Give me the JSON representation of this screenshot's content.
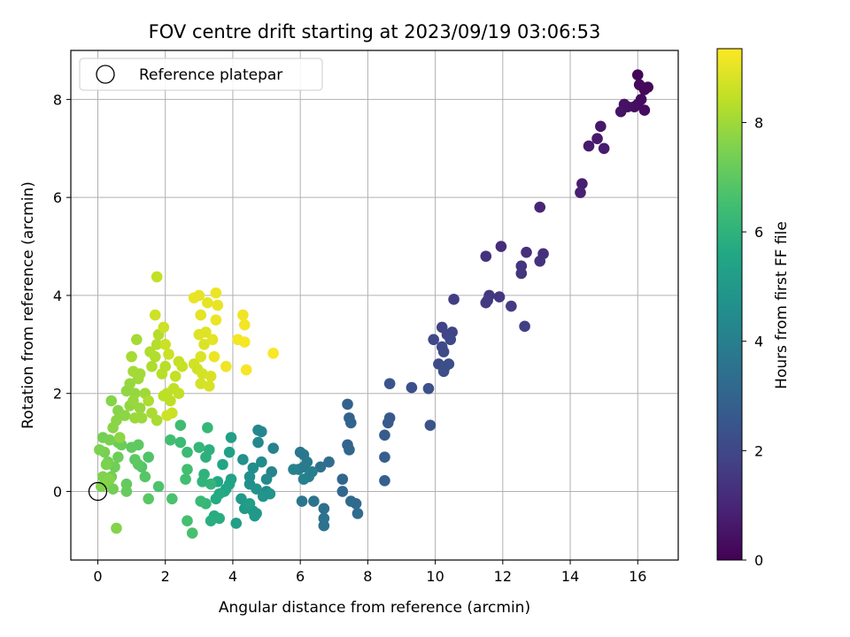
{
  "chart_data": {
    "type": "scatter",
    "title": "FOV centre drift starting at 2023/09/19 03:06:53",
    "xlabel": "Angular distance from reference (arcmin)",
    "ylabel": "Rotation from reference (arcmin)",
    "xlim": [
      -0.8,
      17.2
    ],
    "ylim": [
      -1.4,
      9.0
    ],
    "xticks": [
      0,
      2,
      4,
      6,
      8,
      10,
      12,
      14,
      16
    ],
    "yticks": [
      0,
      2,
      4,
      6,
      8
    ],
    "grid": true,
    "legend": {
      "placement": "top-left",
      "entries": [
        "Reference platepar"
      ]
    },
    "colorbar": {
      "label": "Hours from first FF file",
      "range": [
        0,
        9.35
      ],
      "ticks": [
        0,
        2,
        4,
        6,
        8
      ],
      "colormap": "viridis"
    },
    "reference_point": {
      "x": 0,
      "y": 0
    },
    "points": [
      {
        "x": 16.0,
        "y": 8.5,
        "c": 0.1
      },
      {
        "x": 16.3,
        "y": 8.25,
        "c": 0.15
      },
      {
        "x": 16.2,
        "y": 8.2,
        "c": 0.2
      },
      {
        "x": 16.05,
        "y": 8.3,
        "c": 0.2
      },
      {
        "x": 16.1,
        "y": 8.0,
        "c": 0.25
      },
      {
        "x": 16.0,
        "y": 7.9,
        "c": 0.3
      },
      {
        "x": 15.9,
        "y": 7.85,
        "c": 0.35
      },
      {
        "x": 15.7,
        "y": 7.85,
        "c": 0.4
      },
      {
        "x": 15.6,
        "y": 7.9,
        "c": 0.45
      },
      {
        "x": 15.5,
        "y": 7.75,
        "c": 0.5
      },
      {
        "x": 16.2,
        "y": 7.78,
        "c": 0.3
      },
      {
        "x": 14.9,
        "y": 7.45,
        "c": 0.6
      },
      {
        "x": 14.8,
        "y": 7.2,
        "c": 0.65
      },
      {
        "x": 14.55,
        "y": 7.05,
        "c": 0.7
      },
      {
        "x": 15.0,
        "y": 7.0,
        "c": 0.75
      },
      {
        "x": 14.35,
        "y": 6.28,
        "c": 0.8
      },
      {
        "x": 14.3,
        "y": 6.1,
        "c": 0.85
      },
      {
        "x": 13.1,
        "y": 5.8,
        "c": 1.0
      },
      {
        "x": 11.95,
        "y": 5.0,
        "c": 1.2
      },
      {
        "x": 12.7,
        "y": 4.88,
        "c": 1.25
      },
      {
        "x": 13.2,
        "y": 4.85,
        "c": 1.3
      },
      {
        "x": 11.5,
        "y": 4.8,
        "c": 1.35
      },
      {
        "x": 13.1,
        "y": 4.7,
        "c": 1.35
      },
      {
        "x": 12.55,
        "y": 4.6,
        "c": 1.4
      },
      {
        "x": 12.55,
        "y": 4.45,
        "c": 1.45
      },
      {
        "x": 11.6,
        "y": 4.0,
        "c": 1.5
      },
      {
        "x": 11.9,
        "y": 3.97,
        "c": 1.5
      },
      {
        "x": 11.55,
        "y": 3.9,
        "c": 1.55
      },
      {
        "x": 11.5,
        "y": 3.85,
        "c": 1.6
      },
      {
        "x": 12.25,
        "y": 3.78,
        "c": 1.65
      },
      {
        "x": 10.55,
        "y": 3.92,
        "c": 1.7
      },
      {
        "x": 12.65,
        "y": 3.37,
        "c": 1.75
      },
      {
        "x": 10.2,
        "y": 3.35,
        "c": 1.85
      },
      {
        "x": 10.5,
        "y": 3.25,
        "c": 1.9
      },
      {
        "x": 10.35,
        "y": 3.2,
        "c": 1.95
      },
      {
        "x": 10.45,
        "y": 3.1,
        "c": 2.0
      },
      {
        "x": 9.95,
        "y": 3.1,
        "c": 2.05
      },
      {
        "x": 10.2,
        "y": 2.95,
        "c": 2.1
      },
      {
        "x": 10.25,
        "y": 2.85,
        "c": 2.1
      },
      {
        "x": 10.1,
        "y": 2.6,
        "c": 2.15
      },
      {
        "x": 10.3,
        "y": 2.55,
        "c": 2.2
      },
      {
        "x": 10.25,
        "y": 2.45,
        "c": 2.2
      },
      {
        "x": 10.4,
        "y": 2.6,
        "c": 2.25
      },
      {
        "x": 9.3,
        "y": 2.12,
        "c": 2.3
      },
      {
        "x": 9.8,
        "y": 2.1,
        "c": 2.35
      },
      {
        "x": 9.85,
        "y": 1.35,
        "c": 2.4
      },
      {
        "x": 8.65,
        "y": 2.2,
        "c": 2.5
      },
      {
        "x": 8.65,
        "y": 1.5,
        "c": 2.6
      },
      {
        "x": 8.6,
        "y": 1.4,
        "c": 2.65
      },
      {
        "x": 8.5,
        "y": 1.15,
        "c": 2.7
      },
      {
        "x": 8.5,
        "y": 0.7,
        "c": 2.75
      },
      {
        "x": 8.5,
        "y": 0.22,
        "c": 2.8
      },
      {
        "x": 7.4,
        "y": 1.78,
        "c": 2.9
      },
      {
        "x": 7.45,
        "y": 1.5,
        "c": 2.95
      },
      {
        "x": 7.5,
        "y": 1.4,
        "c": 3.0
      },
      {
        "x": 7.4,
        "y": 0.95,
        "c": 3.0
      },
      {
        "x": 7.45,
        "y": 0.85,
        "c": 3.05
      },
      {
        "x": 7.25,
        "y": 0.25,
        "c": 3.1
      },
      {
        "x": 7.25,
        "y": 0.0,
        "c": 3.15
      },
      {
        "x": 7.5,
        "y": -0.2,
        "c": 3.2
      },
      {
        "x": 7.65,
        "y": -0.25,
        "c": 3.25
      },
      {
        "x": 7.7,
        "y": -0.45,
        "c": 3.3
      },
      {
        "x": 6.85,
        "y": 0.6,
        "c": 3.35
      },
      {
        "x": 6.6,
        "y": 0.5,
        "c": 3.4
      },
      {
        "x": 6.7,
        "y": -0.35,
        "c": 3.45
      },
      {
        "x": 6.7,
        "y": -0.55,
        "c": 3.5
      },
      {
        "x": 6.7,
        "y": -0.7,
        "c": 3.55
      },
      {
        "x": 6.4,
        "y": -0.2,
        "c": 3.6
      },
      {
        "x": 6.05,
        "y": -0.2,
        "c": 3.65
      },
      {
        "x": 6.1,
        "y": 0.75,
        "c": 3.7
      },
      {
        "x": 6.0,
        "y": 0.8,
        "c": 3.75
      },
      {
        "x": 6.2,
        "y": 0.6,
        "c": 3.8
      },
      {
        "x": 6.1,
        "y": 0.5,
        "c": 3.85
      },
      {
        "x": 5.95,
        "y": 0.45,
        "c": 3.9
      },
      {
        "x": 6.35,
        "y": 0.4,
        "c": 3.95
      },
      {
        "x": 6.25,
        "y": 0.3,
        "c": 4.0
      },
      {
        "x": 6.1,
        "y": 0.25,
        "c": 4.05
      },
      {
        "x": 5.2,
        "y": 0.88,
        "c": 4.1
      },
      {
        "x": 5.8,
        "y": 0.45,
        "c": 4.15
      },
      {
        "x": 5.15,
        "y": 0.4,
        "c": 4.2
      },
      {
        "x": 4.75,
        "y": 1.25,
        "c": 4.25
      },
      {
        "x": 4.85,
        "y": 1.22,
        "c": 4.3
      },
      {
        "x": 4.75,
        "y": 1.0,
        "c": 4.35
      },
      {
        "x": 5.0,
        "y": 0.25,
        "c": 4.4
      },
      {
        "x": 5.0,
        "y": 0.0,
        "c": 4.45
      },
      {
        "x": 4.85,
        "y": 0.6,
        "c": 4.5
      },
      {
        "x": 4.6,
        "y": 0.48,
        "c": 4.55
      },
      {
        "x": 4.5,
        "y": 0.3,
        "c": 4.6
      },
      {
        "x": 4.5,
        "y": 0.15,
        "c": 4.65
      },
      {
        "x": 4.3,
        "y": 0.65,
        "c": 4.7
      },
      {
        "x": 4.7,
        "y": 0.05,
        "c": 4.75
      },
      {
        "x": 4.9,
        "y": -0.1,
        "c": 4.8
      },
      {
        "x": 5.1,
        "y": -0.05,
        "c": 4.85
      },
      {
        "x": 4.6,
        "y": -0.4,
        "c": 4.9
      },
      {
        "x": 4.7,
        "y": -0.45,
        "c": 4.95
      },
      {
        "x": 4.65,
        "y": -0.5,
        "c": 5.0
      },
      {
        "x": 4.25,
        "y": -0.15,
        "c": 5.05
      },
      {
        "x": 4.35,
        "y": -0.35,
        "c": 5.1
      },
      {
        "x": 4.5,
        "y": -0.25,
        "c": 5.15
      },
      {
        "x": 4.1,
        "y": -0.65,
        "c": 5.2
      },
      {
        "x": 3.95,
        "y": 1.1,
        "c": 5.25
      },
      {
        "x": 3.9,
        "y": 0.8,
        "c": 5.3
      },
      {
        "x": 3.95,
        "y": 0.25,
        "c": 5.35
      },
      {
        "x": 3.9,
        "y": 0.15,
        "c": 5.4
      },
      {
        "x": 3.8,
        "y": 0.05,
        "c": 5.45
      },
      {
        "x": 3.7,
        "y": 0.55,
        "c": 5.5
      },
      {
        "x": 3.75,
        "y": 0.0,
        "c": 5.55
      },
      {
        "x": 3.55,
        "y": 0.2,
        "c": 5.6
      },
      {
        "x": 3.6,
        "y": -0.05,
        "c": 5.65
      },
      {
        "x": 3.5,
        "y": -0.15,
        "c": 5.7
      },
      {
        "x": 3.45,
        "y": -0.5,
        "c": 5.75
      },
      {
        "x": 3.6,
        "y": -0.55,
        "c": 5.8
      },
      {
        "x": 3.35,
        "y": -0.6,
        "c": 5.85
      },
      {
        "x": 3.3,
        "y": 0.85,
        "c": 5.9
      },
      {
        "x": 3.2,
        "y": 0.7,
        "c": 5.95
      },
      {
        "x": 3.15,
        "y": 0.35,
        "c": 6.0
      },
      {
        "x": 3.1,
        "y": 0.2,
        "c": 6.05
      },
      {
        "x": 3.35,
        "y": 0.15,
        "c": 6.1
      },
      {
        "x": 3.0,
        "y": 0.9,
        "c": 6.15
      },
      {
        "x": 3.25,
        "y": 1.3,
        "c": 6.2
      },
      {
        "x": 3.2,
        "y": -0.25,
        "c": 6.2
      },
      {
        "x": 3.05,
        "y": -0.2,
        "c": 6.25
      },
      {
        "x": 2.65,
        "y": 0.8,
        "c": 6.3
      },
      {
        "x": 2.45,
        "y": 1.0,
        "c": 6.35
      },
      {
        "x": 2.45,
        "y": 1.35,
        "c": 6.4
      },
      {
        "x": 2.15,
        "y": 1.05,
        "c": 6.45
      },
      {
        "x": 2.65,
        "y": 0.45,
        "c": 6.5
      },
      {
        "x": 2.6,
        "y": 0.25,
        "c": 6.5
      },
      {
        "x": 2.65,
        "y": -0.6,
        "c": 6.55
      },
      {
        "x": 2.8,
        "y": -0.85,
        "c": 6.6
      },
      {
        "x": 2.2,
        "y": -0.15,
        "c": 6.65
      },
      {
        "x": 1.8,
        "y": 0.1,
        "c": 6.7
      },
      {
        "x": 1.5,
        "y": 0.7,
        "c": 6.75
      },
      {
        "x": 1.3,
        "y": 0.5,
        "c": 6.8
      },
      {
        "x": 1.4,
        "y": 0.3,
        "c": 6.85
      },
      {
        "x": 1.5,
        "y": -0.15,
        "c": 6.9
      },
      {
        "x": 1.2,
        "y": 0.55,
        "c": 6.95
      },
      {
        "x": 1.1,
        "y": 0.65,
        "c": 7.0
      },
      {
        "x": 1.2,
        "y": 0.95,
        "c": 7.0
      },
      {
        "x": 1.0,
        "y": 0.9,
        "c": 7.05
      },
      {
        "x": 0.85,
        "y": 0.15,
        "c": 7.1
      },
      {
        "x": 0.85,
        "y": 0.0,
        "c": 7.15
      },
      {
        "x": 0.7,
        "y": 0.95,
        "c": 7.2
      },
      {
        "x": 0.6,
        "y": 1.0,
        "c": 7.2
      },
      {
        "x": 0.6,
        "y": 0.7,
        "c": 7.25
      },
      {
        "x": 0.5,
        "y": 0.5,
        "c": 7.3
      },
      {
        "x": 0.4,
        "y": 0.3,
        "c": 7.35
      },
      {
        "x": 0.45,
        "y": 0.05,
        "c": 7.35
      },
      {
        "x": 0.3,
        "y": 0.6,
        "c": 7.4
      },
      {
        "x": 0.15,
        "y": 1.1,
        "c": 7.4
      },
      {
        "x": 0.35,
        "y": 1.05,
        "c": 7.45
      },
      {
        "x": 0.2,
        "y": 0.8,
        "c": 7.45
      },
      {
        "x": 0.05,
        "y": 0.85,
        "c": 7.5
      },
      {
        "x": 0.25,
        "y": 0.55,
        "c": 7.5
      },
      {
        "x": 0.15,
        "y": 0.3,
        "c": 7.55
      },
      {
        "x": 0.1,
        "y": 0.1,
        "c": 7.55
      },
      {
        "x": 0.35,
        "y": 0.25,
        "c": 7.6
      },
      {
        "x": 0.2,
        "y": 0.15,
        "c": 7.6
      },
      {
        "x": 0.55,
        "y": -0.75,
        "c": 7.6
      },
      {
        "x": 0.4,
        "y": 1.85,
        "c": 7.65
      },
      {
        "x": 0.6,
        "y": 1.65,
        "c": 7.65
      },
      {
        "x": 0.55,
        "y": 1.45,
        "c": 7.7
      },
      {
        "x": 0.45,
        "y": 1.3,
        "c": 7.7
      },
      {
        "x": 0.65,
        "y": 1.1,
        "c": 7.75
      },
      {
        "x": 0.8,
        "y": 1.55,
        "c": 7.75
      },
      {
        "x": 0.95,
        "y": 1.75,
        "c": 7.8
      },
      {
        "x": 0.85,
        "y": 2.05,
        "c": 7.8
      },
      {
        "x": 0.95,
        "y": 2.2,
        "c": 7.85
      },
      {
        "x": 1.1,
        "y": 2.0,
        "c": 7.85
      },
      {
        "x": 1.05,
        "y": 1.85,
        "c": 7.9
      },
      {
        "x": 1.25,
        "y": 1.7,
        "c": 7.9
      },
      {
        "x": 1.3,
        "y": 1.5,
        "c": 7.95
      },
      {
        "x": 1.1,
        "y": 1.5,
        "c": 7.95
      },
      {
        "x": 1.4,
        "y": 2.0,
        "c": 8.0
      },
      {
        "x": 1.2,
        "y": 2.3,
        "c": 8.0
      },
      {
        "x": 1.05,
        "y": 2.45,
        "c": 8.05
      },
      {
        "x": 1.25,
        "y": 2.4,
        "c": 8.05
      },
      {
        "x": 1.0,
        "y": 2.75,
        "c": 8.1
      },
      {
        "x": 1.15,
        "y": 3.1,
        "c": 8.1
      },
      {
        "x": 1.6,
        "y": 1.6,
        "c": 8.15
      },
      {
        "x": 1.75,
        "y": 1.45,
        "c": 8.15
      },
      {
        "x": 1.5,
        "y": 1.85,
        "c": 8.2
      },
      {
        "x": 1.6,
        "y": 2.55,
        "c": 8.2
      },
      {
        "x": 1.7,
        "y": 2.75,
        "c": 8.25
      },
      {
        "x": 1.55,
        "y": 2.85,
        "c": 8.25
      },
      {
        "x": 1.75,
        "y": 3.0,
        "c": 8.3
      },
      {
        "x": 1.8,
        "y": 3.2,
        "c": 8.3
      },
      {
        "x": 1.9,
        "y": 2.4,
        "c": 8.35
      },
      {
        "x": 2.0,
        "y": 2.55,
        "c": 8.35
      },
      {
        "x": 2.05,
        "y": 2.0,
        "c": 8.4
      },
      {
        "x": 1.95,
        "y": 1.95,
        "c": 8.4
      },
      {
        "x": 2.15,
        "y": 1.85,
        "c": 8.45
      },
      {
        "x": 2.25,
        "y": 2.1,
        "c": 8.45
      },
      {
        "x": 2.4,
        "y": 2.0,
        "c": 8.5
      },
      {
        "x": 2.3,
        "y": 2.35,
        "c": 8.5
      },
      {
        "x": 2.5,
        "y": 2.55,
        "c": 8.55
      },
      {
        "x": 2.4,
        "y": 2.65,
        "c": 8.55
      },
      {
        "x": 2.1,
        "y": 2.8,
        "c": 8.6
      },
      {
        "x": 2.0,
        "y": 3.0,
        "c": 8.6
      },
      {
        "x": 1.95,
        "y": 3.35,
        "c": 8.65
      },
      {
        "x": 1.7,
        "y": 3.6,
        "c": 8.65
      },
      {
        "x": 1.75,
        "y": 4.38,
        "c": 8.5
      },
      {
        "x": 2.2,
        "y": 1.6,
        "c": 8.6
      },
      {
        "x": 2.05,
        "y": 1.55,
        "c": 8.65
      },
      {
        "x": 2.85,
        "y": 2.6,
        "c": 8.7
      },
      {
        "x": 2.95,
        "y": 2.5,
        "c": 8.7
      },
      {
        "x": 3.1,
        "y": 2.4,
        "c": 8.75
      },
      {
        "x": 3.05,
        "y": 2.2,
        "c": 8.75
      },
      {
        "x": 3.3,
        "y": 2.15,
        "c": 8.8
      },
      {
        "x": 3.35,
        "y": 2.35,
        "c": 8.8
      },
      {
        "x": 3.05,
        "y": 2.75,
        "c": 8.85
      },
      {
        "x": 3.15,
        "y": 3.0,
        "c": 8.85
      },
      {
        "x": 3.0,
        "y": 3.2,
        "c": 8.9
      },
      {
        "x": 3.2,
        "y": 3.25,
        "c": 8.9
      },
      {
        "x": 3.4,
        "y": 3.1,
        "c": 8.95
      },
      {
        "x": 3.05,
        "y": 3.6,
        "c": 8.95
      },
      {
        "x": 3.25,
        "y": 3.85,
        "c": 9.0
      },
      {
        "x": 3.0,
        "y": 4.0,
        "c": 9.0
      },
      {
        "x": 2.85,
        "y": 3.95,
        "c": 9.05
      },
      {
        "x": 3.55,
        "y": 3.8,
        "c": 9.05
      },
      {
        "x": 3.5,
        "y": 3.5,
        "c": 9.1
      },
      {
        "x": 3.45,
        "y": 2.75,
        "c": 9.1
      },
      {
        "x": 3.5,
        "y": 4.05,
        "c": 9.1
      },
      {
        "x": 3.8,
        "y": 2.55,
        "c": 9.15
      },
      {
        "x": 4.3,
        "y": 3.6,
        "c": 9.15
      },
      {
        "x": 4.35,
        "y": 3.4,
        "c": 9.2
      },
      {
        "x": 4.15,
        "y": 3.1,
        "c": 9.2
      },
      {
        "x": 4.35,
        "y": 3.05,
        "c": 9.25
      },
      {
        "x": 4.4,
        "y": 2.48,
        "c": 9.25
      },
      {
        "x": 5.2,
        "y": 2.82,
        "c": 9.3
      }
    ]
  }
}
